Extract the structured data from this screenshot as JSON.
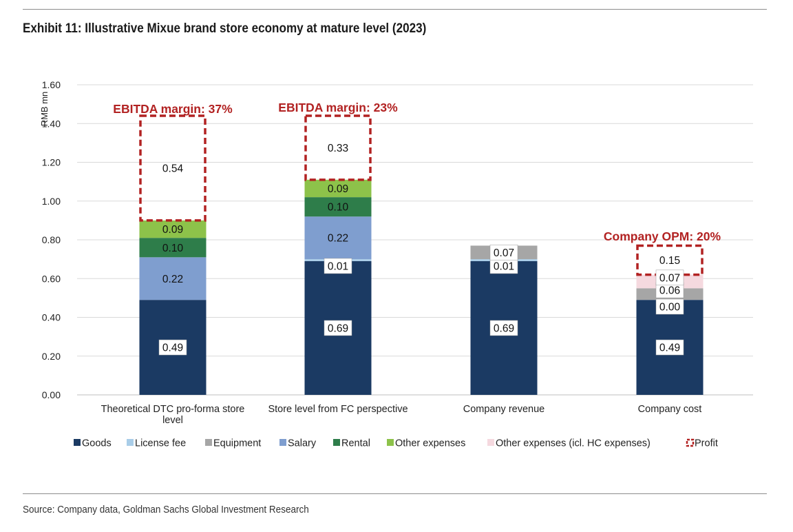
{
  "title": "Exhibit 11: Illustrative Mixue brand store economy at mature level (2023)",
  "source": "Source: Company data, Goldman Sachs Global Investment Research",
  "colors": {
    "Goods": "#1b3a63",
    "License fee": "#a9cde8",
    "Equipment": "#a6a6a6",
    "Salary": "#7f9ecf",
    "Rental": "#2e7d4a",
    "Other expenses": "#8dc24a",
    "Other expenses (icl. HC expenses)": "#f5d9df",
    "Profit": "#b22222",
    "annotation": "#b22222"
  },
  "chart_data": {
    "type": "bar",
    "stacked": true,
    "ylabel": "RMB mn",
    "ylim": [
      0,
      1.6
    ],
    "yticks": [
      "0.00",
      "0.20",
      "0.40",
      "0.60",
      "0.80",
      "1.00",
      "1.20",
      "1.40",
      "1.60"
    ],
    "grid": true,
    "legend_position": "bottom",
    "categories": [
      "Theoretical DTC pro-forma store level",
      "Store level from FC perspective",
      "Company revenue",
      "Company cost"
    ],
    "series": [
      {
        "name": "Goods",
        "values": [
          0.49,
          0.69,
          0.69,
          0.49
        ]
      },
      {
        "name": "License fee",
        "values": [
          0,
          0.01,
          0.01,
          0
        ]
      },
      {
        "name": "Equipment",
        "values": [
          0,
          0,
          0.07,
          0.06
        ]
      },
      {
        "name": "Salary",
        "values": [
          0.22,
          0.22,
          0,
          0
        ]
      },
      {
        "name": "Rental",
        "values": [
          0.1,
          0.1,
          0,
          0
        ]
      },
      {
        "name": "Other expenses",
        "values": [
          0.09,
          0.09,
          0,
          0
        ]
      },
      {
        "name": "Other expenses (icl. HC expenses)",
        "values": [
          0,
          0,
          0,
          0.07
        ]
      },
      {
        "name": "Profit",
        "values": [
          0.54,
          0.33,
          null,
          0.15
        ]
      }
    ],
    "data_labels": [
      [
        {
          "series": "Goods",
          "text": "0.49"
        },
        {
          "series": "Salary",
          "text": "0.22"
        },
        {
          "series": "Rental",
          "text": "0.10"
        },
        {
          "series": "Other expenses",
          "text": "0.09"
        },
        {
          "series": "Profit",
          "text": "0.54"
        }
      ],
      [
        {
          "series": "Goods",
          "text": "0.69"
        },
        {
          "series": "License fee",
          "text": "0.01"
        },
        {
          "series": "Salary",
          "text": "0.22"
        },
        {
          "series": "Rental",
          "text": "0.10"
        },
        {
          "series": "Other expenses",
          "text": "0.09"
        },
        {
          "series": "Profit",
          "text": "0.33"
        }
      ],
      [
        {
          "series": "Goods",
          "text": "0.69"
        },
        {
          "series": "License fee",
          "text": "0.01"
        },
        {
          "series": "Equipment",
          "text": "0.07"
        }
      ],
      [
        {
          "series": "Goods",
          "text": "0.49"
        },
        {
          "series": "License fee",
          "text": "0.00"
        },
        {
          "series": "Equipment",
          "text": "0.06"
        },
        {
          "series": "Other expenses (icl. HC expenses)",
          "text": "0.07"
        },
        {
          "series": "Profit",
          "text": "0.15"
        }
      ]
    ],
    "annotations": [
      {
        "category_index": 0,
        "text": "EBITDA margin: 37%"
      },
      {
        "category_index": 1,
        "text": "EBITDA margin: 23%"
      },
      {
        "category_index": 3,
        "text": "Company OPM: 20%"
      }
    ]
  }
}
